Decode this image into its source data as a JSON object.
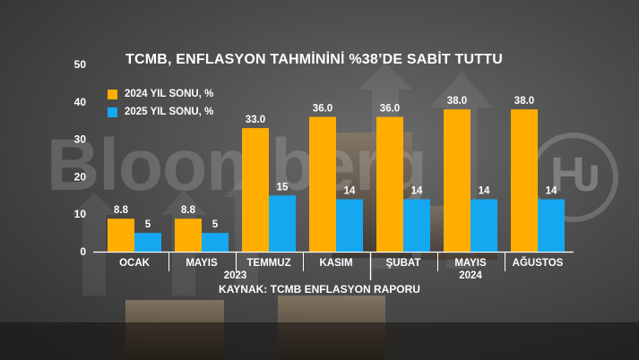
{
  "watermark": "Bloomberg",
  "logo_glyph": "Ƕ",
  "chart_data": {
    "type": "bar",
    "title": "TCMB, ENFLASYON TAHMİNİNİ %38’DE SABİT TUTTU",
    "categories": [
      "OCAK",
      "MAYIS",
      "TEMMUZ",
      "KASIM",
      "ŞUBAT",
      "MAYIS",
      "AĞUSTOS"
    ],
    "year_groups": [
      {
        "label": "2023",
        "start": 0,
        "end": 3
      },
      {
        "label": "2024",
        "start": 4,
        "end": 6
      }
    ],
    "series": [
      {
        "name": "2024 YIL SONU, %",
        "color": "#FFAE00",
        "values": [
          8.8,
          8.8,
          33.0,
          36.0,
          36.0,
          38.0,
          38.0
        ],
        "labels": [
          "8.8",
          "8.8",
          "33.0",
          "36.0",
          "36.0",
          "38.0",
          "38.0"
        ]
      },
      {
        "name": "2025 YIL SONU, %",
        "color": "#15A8F0",
        "values": [
          5,
          5,
          15,
          14,
          14,
          14,
          14
        ],
        "labels": [
          "5",
          "5",
          "15",
          "14",
          "14",
          "14",
          "14"
        ]
      }
    ],
    "yticks": [
      0,
      10,
      20,
      30,
      40,
      50
    ],
    "ylim": [
      0,
      50
    ],
    "grid": false,
    "legend_position": "top-left",
    "source": "KAYNAK: TCMB ENFLASYON RAPORU"
  }
}
